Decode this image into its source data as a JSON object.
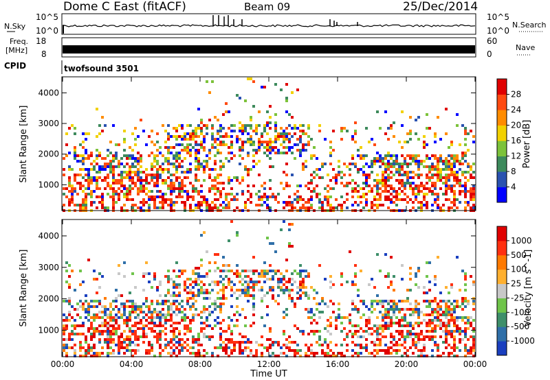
{
  "header": {
    "station": "Dome C East (fitACF)",
    "beam": "Beam 09",
    "date": "25/Dec/2014"
  },
  "strips": {
    "nsky_label": "N.Sky",
    "nsky_ticks": [
      "10^5",
      "10^0"
    ],
    "nsearch_label": "N.Search",
    "freq_label_1": "Freq.",
    "freq_label_2": "[MHz]",
    "freq_ticks": [
      "18",
      "8"
    ],
    "nave_label": "Nave",
    "nave_ticks": [
      "60",
      "0"
    ],
    "cpid_label": "CPID",
    "cpid_value": "twofsound 3501"
  },
  "chart_data": [
    {
      "type": "heatmap",
      "title": "",
      "ylabel": "Slant Range [km]",
      "xlabel": "",
      "xlim": [
        "00:00",
        "24:00"
      ],
      "ylim": [
        180,
        4500
      ],
      "yticks": [
        "1000",
        "2000",
        "3000",
        "4000"
      ],
      "colorbar": {
        "label": "Power [dB]",
        "ticks": [
          "28",
          "24",
          "20",
          "16",
          "12",
          "8",
          "4"
        ],
        "colors": [
          "#0000ff",
          "#2a52b0",
          "#3d8a5c",
          "#7cc23a",
          "#f2d100",
          "#ff8c00",
          "#ff4a10",
          "#e00000"
        ]
      }
    },
    {
      "type": "heatmap",
      "title": "",
      "ylabel": "Slant Range [km]",
      "xlabel": "Time UT",
      "xlim": [
        "00:00",
        "24:00"
      ],
      "ylim": [
        180,
        4500
      ],
      "yticks": [
        "1000",
        "2000",
        "3000",
        "4000"
      ],
      "xticks": [
        "00:00",
        "04:00",
        "08:00",
        "12:00",
        "16:00",
        "20:00",
        "00:00"
      ],
      "colorbar": {
        "label": "Velocity [m s^-1]",
        "ticks": [
          "1000",
          "500",
          "100",
          "25",
          "-25",
          "-100",
          "-500",
          "-1000"
        ],
        "colors": [
          "#1a3fbf",
          "#2f6fa8",
          "#3e8f6a",
          "#6fc44a",
          "#c8c8c8",
          "#ffb030",
          "#ff7a00",
          "#ff3010",
          "#e00000"
        ]
      }
    }
  ]
}
